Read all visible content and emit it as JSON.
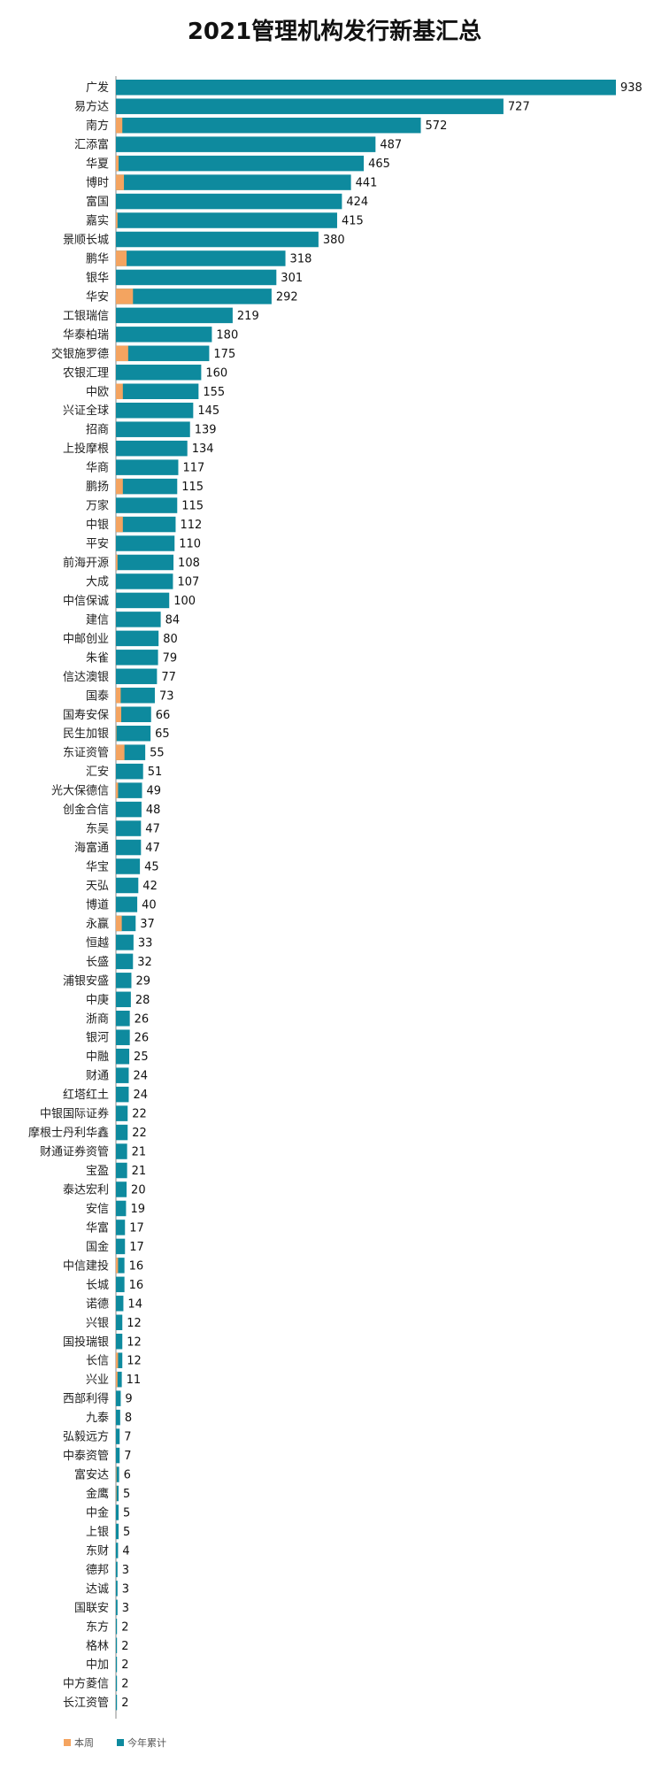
{
  "chart_data": {
    "type": "bar",
    "orientation": "horizontal",
    "stacked": true,
    "title": "2021管理机构发行新基汇总",
    "categories": [
      "广发",
      "易方达",
      "南方",
      "汇添富",
      "华夏",
      "博时",
      "富国",
      "嘉实",
      "景顺长城",
      "鹏华",
      "银华",
      "华安",
      "工银瑞信",
      "华泰柏瑞",
      "交银施罗德",
      "农银汇理",
      "中欧",
      "兴证全球",
      "招商",
      "上投摩根",
      "华商",
      "鹏扬",
      "万家",
      "中银",
      "平安",
      "前海开源",
      "大成",
      "中信保诚",
      "建信",
      "中邮创业",
      "朱雀",
      "信达澳银",
      "国泰",
      "国寿安保",
      "民生加银",
      "东证资管",
      "汇安",
      "光大保德信",
      "创金合信",
      "东吴",
      "海富通",
      "华宝",
      "天弘",
      "博道",
      "永赢",
      "恒越",
      "长盛",
      "浦银安盛",
      "中庚",
      "浙商",
      "银河",
      "中融",
      "财通",
      "红塔红土",
      "中银国际证券",
      "摩根士丹利华鑫",
      "财通证券资管",
      "宝盈",
      "泰达宏利",
      "安信",
      "华富",
      "国金",
      "中信建投",
      "长城",
      "诺德",
      "兴银",
      "国投瑞银",
      "长信",
      "兴业",
      "西部利得",
      "九泰",
      "弘毅远方",
      "中泰资管",
      "富安达",
      "金鹰",
      "中金",
      "上银",
      "东财",
      "德邦",
      "达诚",
      "国联安",
      "东方",
      "格林",
      "中加",
      "中方菱信",
      "长江资管"
    ],
    "series": [
      {
        "name": "本周",
        "color": "#F4A460",
        "values": [
          0,
          0,
          12,
          0,
          5,
          15,
          0,
          3,
          0,
          20,
          0,
          32,
          0,
          0,
          23,
          0,
          13,
          0,
          0,
          0,
          0,
          13,
          0,
          13,
          0,
          3,
          0,
          0,
          0,
          0,
          0,
          0,
          9,
          10,
          1,
          16,
          0,
          4,
          0,
          0,
          0,
          0,
          0,
          0,
          11,
          0,
          0,
          0,
          0,
          0,
          0,
          0,
          0,
          0,
          0,
          0,
          0,
          0,
          0,
          0,
          0,
          0,
          4,
          0,
          0,
          0,
          0,
          4,
          3,
          0,
          0,
          0,
          0,
          1,
          1,
          0,
          0,
          0,
          0,
          0,
          0,
          0,
          0,
          0,
          0,
          0
        ]
      },
      {
        "name": "今年累计",
        "color": "#0E8A9E",
        "values": [
          938,
          727,
          572,
          487,
          465,
          441,
          424,
          415,
          380,
          318,
          301,
          292,
          219,
          180,
          175,
          160,
          155,
          145,
          139,
          134,
          117,
          115,
          115,
          112,
          110,
          108,
          107,
          100,
          84,
          80,
          79,
          77,
          73,
          66,
          65,
          55,
          51,
          49,
          48,
          47,
          47,
          45,
          42,
          40,
          37,
          33,
          32,
          29,
          28,
          26,
          26,
          25,
          24,
          24,
          22,
          22,
          21,
          21,
          20,
          19,
          17,
          17,
          16,
          16,
          14,
          12,
          12,
          12,
          11,
          9,
          8,
          7,
          7,
          6,
          5,
          5,
          5,
          4,
          3,
          3,
          3,
          2,
          2,
          2,
          2,
          2
        ]
      }
    ],
    "data_labels": "今年累计",
    "xlim": [
      0,
      938
    ],
    "legend_position": "bottom-left",
    "grid": false
  }
}
